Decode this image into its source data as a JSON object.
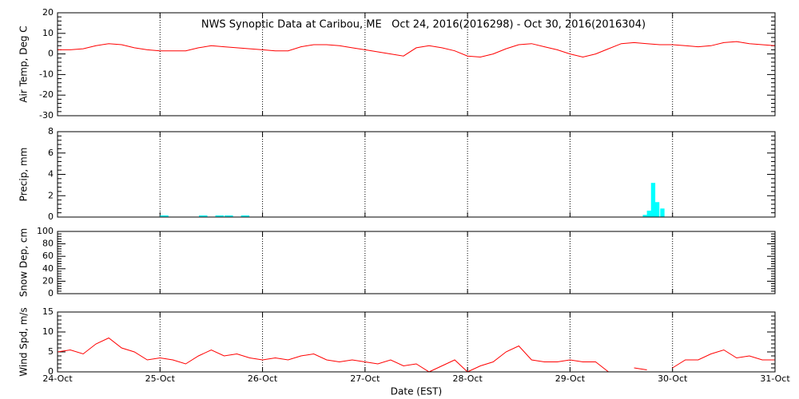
{
  "chart_data": [
    {
      "type": "line",
      "title": "NWS Synoptic Data at Caribou, ME   Oct 24, 2016(2016298) - Oct 30, 2016(2016304)",
      "ylabel": "Air Temp, Deg C",
      "ylim": [
        -30,
        20
      ],
      "yticks": [
        -30,
        -20,
        -10,
        0,
        10,
        20
      ],
      "x": [
        24,
        24.125,
        24.25,
        24.375,
        24.5,
        24.625,
        24.75,
        24.875,
        25,
        25.125,
        25.25,
        25.375,
        25.5,
        25.625,
        25.75,
        25.875,
        26,
        26.125,
        26.25,
        26.375,
        26.5,
        26.625,
        26.75,
        26.875,
        27,
        27.125,
        27.25,
        27.375,
        27.5,
        27.625,
        27.75,
        27.875,
        28,
        28.125,
        28.25,
        28.375,
        28.5,
        28.625,
        28.75,
        28.875,
        29,
        29.125,
        29.25,
        29.375,
        29.5,
        29.625,
        29.75,
        29.875,
        30,
        30.125,
        30.25,
        30.375,
        30.5,
        30.625,
        30.75,
        30.875,
        31
      ],
      "series": [
        {
          "color": "#ff0000",
          "values": [
            2,
            2,
            2.5,
            4,
            5,
            4.5,
            3,
            2,
            1.5,
            1.5,
            1.5,
            3,
            4,
            3.5,
            3,
            2.5,
            2,
            1.5,
            1.5,
            3.5,
            4.5,
            4.5,
            4,
            3,
            2,
            1,
            0,
            -1,
            3,
            4,
            3,
            1.5,
            -1,
            -1.5,
            0,
            2.5,
            4.5,
            5,
            3.5,
            2,
            0,
            -1.5,
            0,
            2.5,
            5,
            5.5,
            5,
            4.5,
            4.5,
            4,
            3.5,
            4,
            5.5,
            6,
            5,
            4.5,
            4
          ]
        }
      ]
    },
    {
      "type": "bar",
      "ylabel": "Precip, mm",
      "ylim": [
        0,
        8
      ],
      "yticks": [
        0,
        2,
        4,
        6,
        8
      ],
      "x": [
        25,
        25.04,
        25.38,
        25.42,
        25.54,
        25.58,
        25.63,
        25.67,
        25.79,
        25.83,
        29.71,
        29.75,
        29.79,
        29.83,
        29.88
      ],
      "color": "#00ffff",
      "values": [
        0.15,
        0.15,
        0.15,
        0.15,
        0.15,
        0.15,
        0.15,
        0.15,
        0.15,
        0.15,
        0.2,
        0.6,
        3.2,
        1.4,
        0.8
      ]
    },
    {
      "type": "line",
      "ylabel": "Snow Dep, cm",
      "ylim": [
        0,
        100
      ],
      "yticks": [
        0,
        20,
        40,
        60,
        80,
        100
      ]
    },
    {
      "type": "line",
      "ylabel": "Wind Spd, m/s",
      "xlabel": "Date (EST)",
      "xlim": [
        24,
        31
      ],
      "xticks": [
        {
          "value": 24,
          "label": "24-Oct"
        },
        {
          "value": 25,
          "label": "25-Oct"
        },
        {
          "value": 26,
          "label": "26-Oct"
        },
        {
          "value": 27,
          "label": "27-Oct"
        },
        {
          "value": 28,
          "label": "28-Oct"
        },
        {
          "value": 29,
          "label": "29-Oct"
        },
        {
          "value": 30,
          "label": "30-Oct"
        },
        {
          "value": 31,
          "label": "31-Oct"
        }
      ],
      "ylim": [
        0,
        15
      ],
      "yticks": [
        0,
        5,
        10,
        15
      ],
      "x": [
        24,
        24.125,
        24.25,
        24.375,
        24.5,
        24.625,
        24.75,
        24.875,
        25,
        25.125,
        25.25,
        25.375,
        25.5,
        25.625,
        25.75,
        25.875,
        26,
        26.125,
        26.25,
        26.375,
        26.5,
        26.625,
        26.75,
        26.875,
        27,
        27.125,
        27.25,
        27.375,
        27.5,
        27.625,
        27.75,
        27.875,
        28,
        28.125,
        28.25,
        28.375,
        28.5,
        28.625,
        28.75,
        28.875,
        29,
        29.125,
        29.25,
        29.375,
        29.5,
        29.625,
        29.75,
        29.875,
        30,
        30.125,
        30.25,
        30.375,
        30.5,
        30.625,
        30.75,
        30.875,
        31
      ],
      "series": [
        {
          "color": "#ff0000",
          "values": [
            5,
            5.5,
            4.5,
            7,
            8.5,
            6,
            5,
            3,
            3.5,
            3,
            2,
            4,
            5.5,
            4,
            4.5,
            3.5,
            3,
            3.5,
            3,
            4,
            4.5,
            3,
            2.5,
            3,
            2.5,
            2,
            3,
            1.5,
            2,
            0,
            1.5,
            3,
            0,
            1.5,
            2.5,
            5,
            6.5,
            3,
            2.5,
            2.5,
            3,
            2.5,
            2.5,
            0,
            null,
            1,
            0.5,
            null,
            1,
            3,
            3,
            4.5,
            5.5,
            3.5,
            4,
            3,
            3
          ]
        }
      ]
    }
  ]
}
